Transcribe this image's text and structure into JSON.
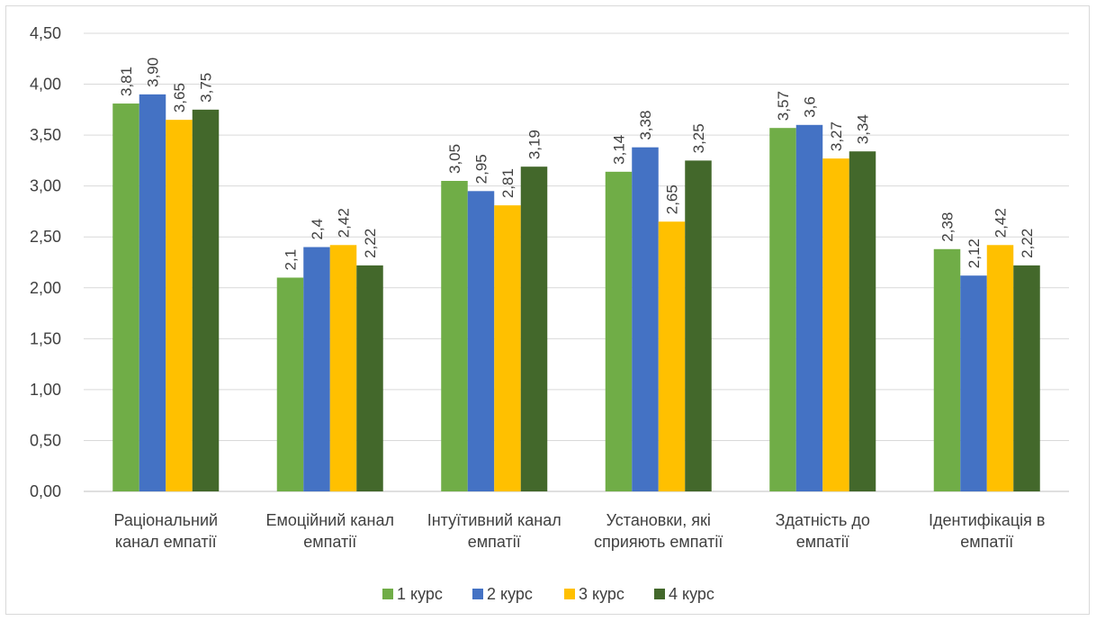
{
  "chart_data": {
    "type": "bar",
    "title": "",
    "xlabel": "",
    "ylabel": "",
    "ylim": [
      0,
      4.5
    ],
    "ytick_step": 0.5,
    "grid": true,
    "legend_position": "bottom",
    "categories": [
      [
        "Раціональний",
        "канал емпатії"
      ],
      [
        "Емоційний канал",
        "емпатії"
      ],
      [
        "Інтуїтивний канал",
        "емпатії"
      ],
      [
        "Установки, які",
        "сприяють емпатії"
      ],
      [
        "Здатність до",
        "емпатії"
      ],
      [
        "Ідентифікація в",
        "емпатії"
      ]
    ],
    "series": [
      {
        "name": "1 курс",
        "color": "#70ad47",
        "values": [
          3.81,
          2.1,
          3.05,
          3.14,
          3.57,
          2.38
        ],
        "labels": [
          "3,81",
          "2,1",
          "3,05",
          "3,14",
          "3,57",
          "2,38"
        ]
      },
      {
        "name": "2 курс",
        "color": "#4472c4",
        "values": [
          3.9,
          2.4,
          2.95,
          3.38,
          3.6,
          2.12
        ],
        "labels": [
          "3,90",
          "2,4",
          "2,95",
          "3,38",
          "3,6",
          "2,12"
        ]
      },
      {
        "name": "3 курс",
        "color": "#ffc000",
        "values": [
          3.65,
          2.42,
          2.81,
          2.65,
          3.27,
          2.42
        ],
        "labels": [
          "3,65",
          "2,42",
          "2,81",
          "2,65",
          "3,27",
          "2,42"
        ]
      },
      {
        "name": "4 курс",
        "color": "#43682b",
        "values": [
          3.75,
          2.22,
          3.19,
          3.25,
          3.34,
          2.22
        ],
        "labels": [
          "3,75",
          "2,22",
          "3,19",
          "3,25",
          "3,34",
          "2,22"
        ]
      }
    ],
    "ytick_labels": [
      "0,00",
      "0,50",
      "1,00",
      "1,50",
      "2,00",
      "2,50",
      "3,00",
      "3,50",
      "4,00",
      "4,50"
    ]
  }
}
